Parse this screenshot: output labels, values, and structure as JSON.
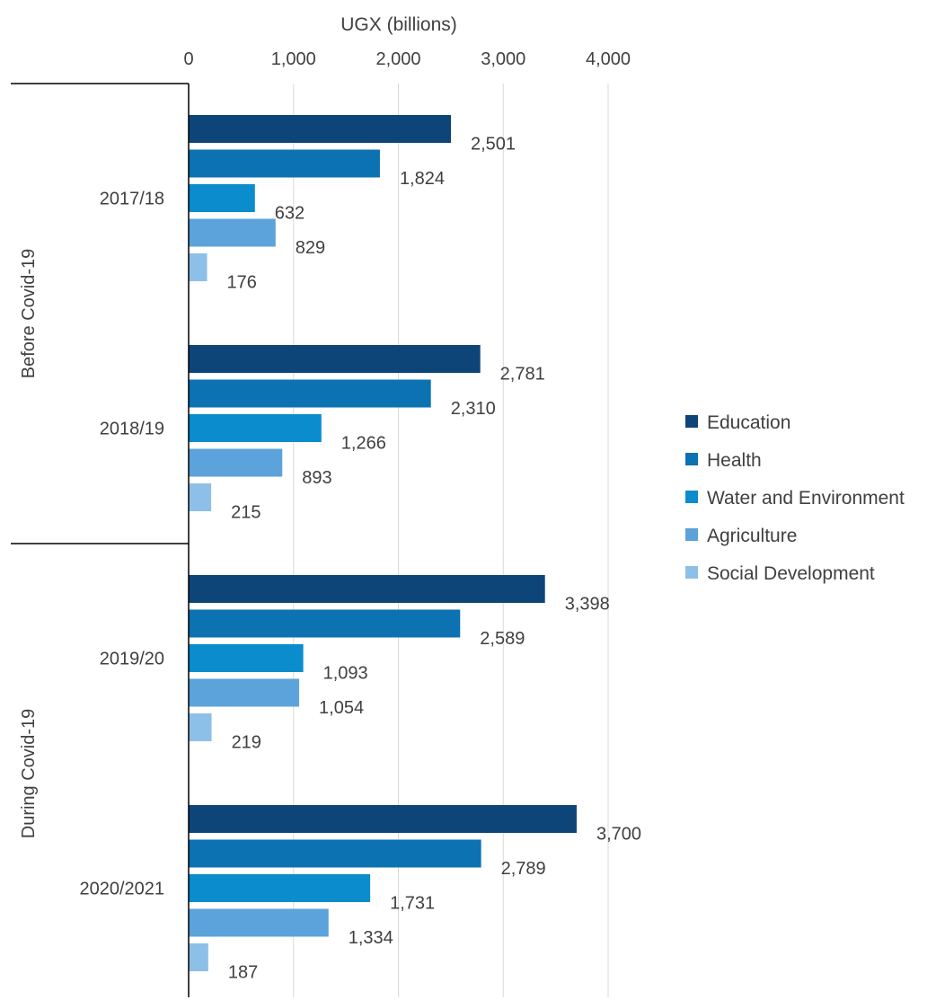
{
  "chart_data": {
    "type": "bar",
    "orientation": "horizontal",
    "xlabel": "UGX (billions)",
    "xlim": [
      0,
      4000
    ],
    "xticks": [
      0,
      1000,
      2000,
      3000,
      4000
    ],
    "xtick_labels": [
      "0",
      "1,000",
      "2,000",
      "3,000",
      "4,000"
    ],
    "grid": true,
    "legend_position": "right",
    "groups": [
      {
        "label": "Before Covid-19",
        "categories": [
          "2017/18",
          "2018/19"
        ]
      },
      {
        "label": "During Covid-19",
        "categories": [
          "2019/20",
          "2020/2021"
        ]
      }
    ],
    "categories": [
      "2017/18",
      "2018/19",
      "2019/20",
      "2020/2021"
    ],
    "series": [
      {
        "name": "Education",
        "color": "#0e4579",
        "values": [
          2501,
          2781,
          3398,
          3700
        ],
        "labels": [
          "2,501",
          "2,781",
          "3,398",
          "3,700"
        ]
      },
      {
        "name": "Health",
        "color": "#0d72b1",
        "values": [
          1824,
          2310,
          2589,
          2789
        ],
        "labels": [
          "1,824",
          "2,310",
          "2,589",
          "2,789"
        ]
      },
      {
        "name": "Water and Environment",
        "color": "#0a8ccd",
        "values": [
          632,
          1266,
          1093,
          1731
        ],
        "labels": [
          "632",
          "1,266",
          "1,093",
          "1,731"
        ]
      },
      {
        "name": "Agriculture",
        "color": "#5ba3da",
        "values": [
          829,
          893,
          1054,
          1334
        ],
        "labels": [
          "829",
          "893",
          "1,054",
          "1,334"
        ]
      },
      {
        "name": "Social Development",
        "color": "#8dc0e8",
        "values": [
          176,
          215,
          219,
          187
        ],
        "labels": [
          "176",
          "215",
          "219",
          "187"
        ]
      }
    ]
  }
}
